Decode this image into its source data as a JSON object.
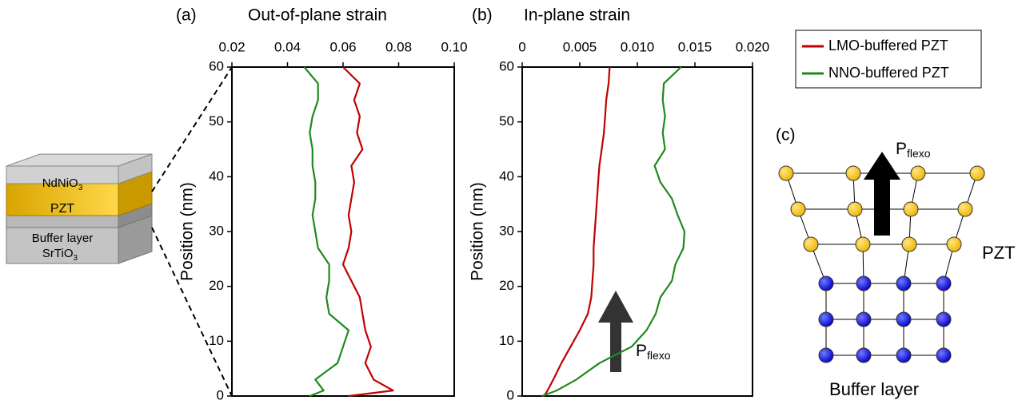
{
  "chart_data": [
    {
      "type": "line",
      "panel": "(a)",
      "title": "Out-of-plane strain",
      "y_label": "Position (nm)",
      "y": [
        0,
        1,
        3,
        6,
        9,
        12,
        15,
        18,
        21,
        24,
        27,
        30,
        33,
        36,
        39,
        42,
        45,
        48,
        51,
        54,
        57,
        60
      ],
      "series": [
        {
          "name": "LMO-buffered PZT",
          "color": "#c00000",
          "values": [
            0.062,
            0.078,
            0.071,
            0.068,
            0.07,
            0.068,
            0.067,
            0.066,
            0.063,
            0.06,
            0.062,
            0.063,
            0.062,
            0.063,
            0.064,
            0.063,
            0.067,
            0.065,
            0.066,
            0.064,
            0.066,
            0.06
          ]
        },
        {
          "name": "NNO-buffered PZT",
          "color": "#1e8a1e",
          "values": [
            0.048,
            0.053,
            0.05,
            0.058,
            0.06,
            0.062,
            0.055,
            0.054,
            0.055,
            0.055,
            0.051,
            0.05,
            0.049,
            0.05,
            0.05,
            0.049,
            0.049,
            0.048,
            0.049,
            0.051,
            0.051,
            0.046
          ]
        }
      ],
      "xlim": [
        0.02,
        0.1
      ],
      "xticks": [
        0.02,
        0.04,
        0.06,
        0.08,
        {
          "value": 0.1,
          "label": "0.10"
        }
      ],
      "ylim": [
        0,
        60
      ],
      "yticks": [
        0,
        10,
        20,
        30,
        40,
        50,
        60
      ]
    },
    {
      "type": "line",
      "panel": "(b)",
      "title": "In-plane strain",
      "y_label": "Position (nm)",
      "y": [
        0,
        1,
        3,
        6,
        9,
        12,
        15,
        18,
        21,
        24,
        27,
        30,
        33,
        36,
        39,
        42,
        45,
        48,
        51,
        54,
        57,
        60
      ],
      "series": [
        {
          "color": "#c00000",
          "values": [
            0.0019,
            0.0022,
            0.0027,
            0.0034,
            0.0042,
            0.005,
            0.0057,
            0.006,
            0.0061,
            0.0062,
            0.0062,
            0.0063,
            0.0064,
            0.0065,
            0.0066,
            0.0067,
            0.0069,
            0.0071,
            0.0072,
            0.0073,
            0.0075,
            0.0076
          ]
        },
        {
          "color": "#1e8a1e",
          "values": [
            0.0017,
            0.003,
            0.0047,
            0.0067,
            0.0095,
            0.0108,
            0.0116,
            0.012,
            0.013,
            0.0133,
            0.014,
            0.0141,
            0.0135,
            0.013,
            0.012,
            0.0115,
            0.0124,
            0.0122,
            0.0124,
            0.0122,
            0.0123,
            0.0138
          ]
        }
      ],
      "xlim": [
        0,
        0.02
      ],
      "xticks": [
        0,
        0.005,
        {
          "value": 0.01,
          "label": "0.010"
        },
        0.015,
        {
          "value": 0.02,
          "label": "0.020"
        }
      ],
      "ylim": [
        0,
        60
      ],
      "yticks": [
        0,
        10,
        20,
        30,
        40,
        50,
        60
      ],
      "arrow_label": {
        "main": "P",
        "sub": "flexo"
      }
    }
  ],
  "schematic": {
    "layers": [
      {
        "main": "NdNiO",
        "sub": "3"
      },
      {
        "main": "PZT"
      },
      {
        "main": "Buffer layer"
      },
      {
        "main": "SrTiO",
        "sub": "3"
      }
    ]
  },
  "diagram": {
    "panel": "(c)",
    "arrow_label": {
      "main": "P",
      "sub": "flexo"
    },
    "top_label": "PZT",
    "bottom_label": "Buffer layer"
  }
}
